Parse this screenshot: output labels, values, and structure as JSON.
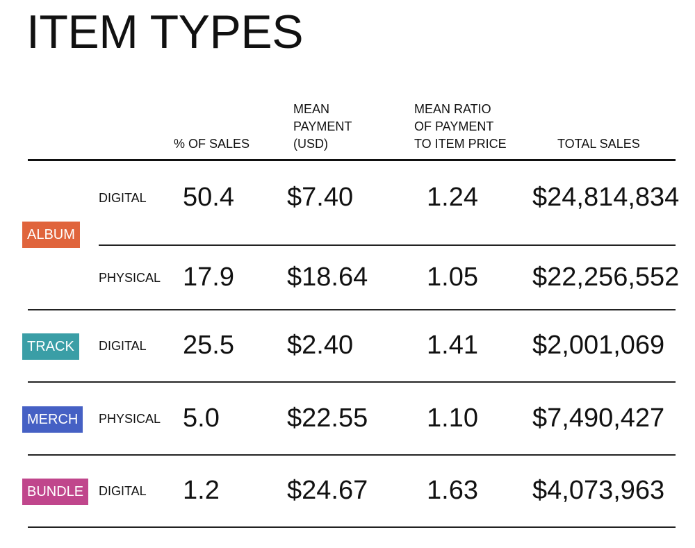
{
  "title": "ITEM TYPES",
  "headers": [
    "% OF SALES",
    "MEAN\nPAYMENT\n(USD)",
    "MEAN RATIO\nOF PAYMENT\nTO ITEM PRICE",
    "TOTAL SALES"
  ],
  "groups": [
    {
      "label": "ALBUM",
      "color": "#e0643c",
      "rows": [
        {
          "format": "DIGITAL",
          "cells": [
            "50.4",
            "$7.40",
            "1.24",
            "$24,814,834"
          ]
        },
        {
          "format": "PHYSICAL",
          "cells": [
            "17.9",
            "$18.64",
            "1.05",
            "$22,256,552"
          ]
        }
      ]
    },
    {
      "label": "TRACK",
      "color": "#3a9ea6",
      "rows": [
        {
          "format": "DIGITAL",
          "cells": [
            "25.5",
            "$2.40",
            "1.41",
            "$2,001,069"
          ]
        }
      ]
    },
    {
      "label": "MERCH",
      "color": "#4560c4",
      "rows": [
        {
          "format": "PHYSICAL",
          "cells": [
            "5.0",
            "$22.55",
            "1.10",
            "$7,490,427"
          ]
        }
      ]
    },
    {
      "label": "BUNDLE",
      "color": "#c0468c",
      "rows": [
        {
          "format": "DIGITAL",
          "cells": [
            "1.2",
            "$24.67",
            "1.63",
            "$4,073,963"
          ]
        }
      ]
    }
  ]
}
